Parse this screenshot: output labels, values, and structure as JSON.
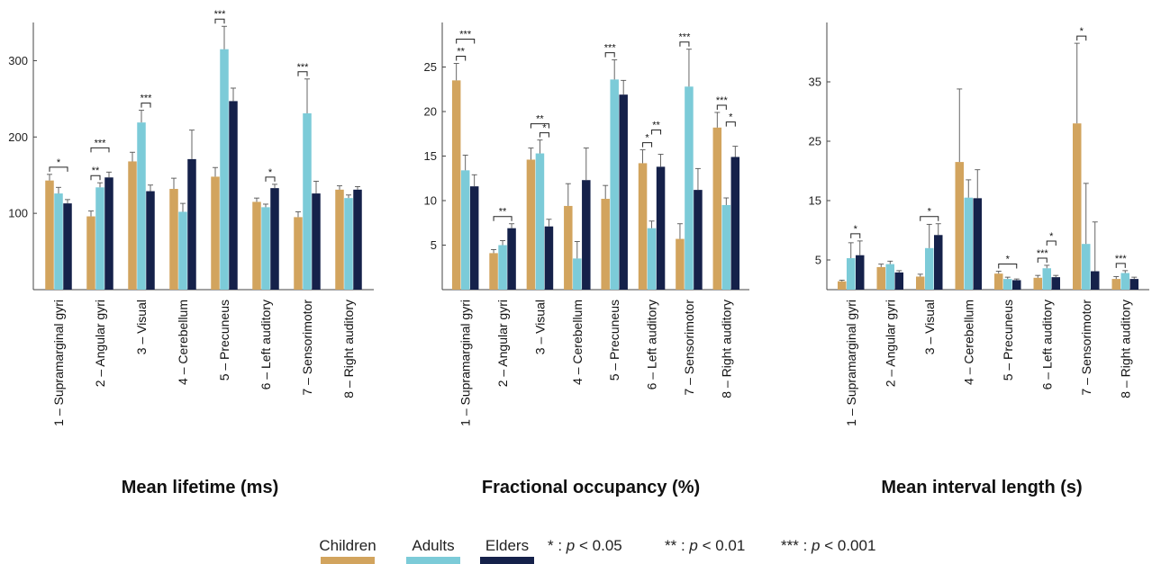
{
  "colors": {
    "Children": "#D2A45E",
    "Adults": "#7CCBD8",
    "Elders": "#15214A"
  },
  "legend": {
    "series": [
      "Children",
      "Adults",
      "Elders"
    ],
    "sig": [
      {
        "stars": "*",
        "sep": " : ",
        "p": "p",
        "rest": " < 0.05"
      },
      {
        "stars": "**",
        "sep": " : ",
        "p": "p",
        "rest": " < 0.01"
      },
      {
        "stars": "***",
        "sep": " : ",
        "p": "p",
        "rest": " < 0.001"
      }
    ]
  },
  "chart_data": [
    {
      "type": "bar",
      "title": "Mean lifetime (ms)",
      "categories": [
        "1 – Supramarginal gyri",
        "2 – Angular gyri",
        "3 – Visual",
        "4 – Cerebellum",
        "5 – Precuneus",
        "6 – Left auditory",
        "7 – Sensorimotor",
        "8 – Right auditory"
      ],
      "ylim": [
        0,
        350
      ],
      "yticks": [
        100,
        200,
        300
      ],
      "series": [
        {
          "name": "Children",
          "values": [
            143,
            96,
            168,
            132,
            148,
            115,
            95,
            131
          ],
          "err": [
            8,
            7,
            12,
            14,
            12,
            5,
            7,
            5
          ]
        },
        {
          "name": "Adults",
          "values": [
            126,
            134,
            219,
            102,
            315,
            108,
            231,
            120
          ],
          "err": [
            8,
            6,
            16,
            11,
            30,
            4,
            45,
            4
          ]
        },
        {
          "name": "Elders",
          "values": [
            113,
            147,
            129,
            171,
            247,
            133,
            126,
            131
          ],
          "err": [
            5,
            7,
            8,
            38,
            17,
            5,
            16,
            4
          ]
        }
      ],
      "significance": [
        {
          "cat": 0,
          "a": 0,
          "b": 2,
          "label": "*"
        },
        {
          "cat": 1,
          "a": 0,
          "b": 1,
          "label": "**"
        },
        {
          "cat": 1,
          "a": 0,
          "b": 2,
          "label": "***"
        },
        {
          "cat": 2,
          "a": 1,
          "b": 2,
          "label": "***"
        },
        {
          "cat": 4,
          "a": 0,
          "b": 1,
          "label": "***"
        },
        {
          "cat": 5,
          "a": 1,
          "b": 2,
          "label": "*"
        },
        {
          "cat": 6,
          "a": 0,
          "b": 1,
          "label": "***"
        }
      ]
    },
    {
      "type": "bar",
      "title": "Fractional occupancy (%)",
      "categories": [
        "1 – Supramarginal gyri",
        "2 – Angular gyri",
        "3 – Visual",
        "4 – Cerebellum",
        "5 – Precuneus",
        "6 – Left auditory",
        "7 – Sensorimotor",
        "8 – Right auditory"
      ],
      "ylim": [
        0,
        30
      ],
      "yticks": [
        5,
        10,
        15,
        20,
        25
      ],
      "series": [
        {
          "name": "Children",
          "values": [
            23.5,
            4.1,
            14.6,
            9.4,
            10.2,
            14.2,
            5.7,
            18.2
          ],
          "err": [
            1.9,
            0.4,
            1.3,
            2.5,
            1.5,
            1.5,
            1.7,
            1.7
          ]
        },
        {
          "name": "Adults",
          "values": [
            13.4,
            5.0,
            15.3,
            3.5,
            23.6,
            6.9,
            22.8,
            9.5
          ],
          "err": [
            1.7,
            0.5,
            1.5,
            1.9,
            2.2,
            0.8,
            4.2,
            0.8
          ]
        },
        {
          "name": "Elders",
          "values": [
            11.6,
            6.9,
            7.1,
            12.3,
            21.9,
            13.8,
            11.2,
            14.9
          ],
          "err": [
            1.3,
            0.5,
            0.8,
            3.6,
            1.6,
            1.4,
            2.4,
            1.2
          ]
        }
      ],
      "significance": [
        {
          "cat": 0,
          "a": 0,
          "b": 1,
          "label": "**"
        },
        {
          "cat": 0,
          "a": 0,
          "b": 2,
          "label": "***"
        },
        {
          "cat": 1,
          "a": 0,
          "b": 2,
          "label": "**"
        },
        {
          "cat": 2,
          "a": 1,
          "b": 2,
          "label": "*"
        },
        {
          "cat": 2,
          "a": 0,
          "b": 2,
          "label": "**"
        },
        {
          "cat": 4,
          "a": 0,
          "b": 1,
          "label": "***"
        },
        {
          "cat": 5,
          "a": 0,
          "b": 1,
          "label": "*"
        },
        {
          "cat": 5,
          "a": 1,
          "b": 2,
          "label": "**"
        },
        {
          "cat": 6,
          "a": 0,
          "b": 1,
          "label": "***"
        },
        {
          "cat": 7,
          "a": 0,
          "b": 1,
          "label": "***"
        },
        {
          "cat": 7,
          "a": 1,
          "b": 2,
          "label": "*"
        }
      ]
    },
    {
      "type": "bar",
      "title": "Mean interval length (s)",
      "categories": [
        "1 – Supramarginal gyri",
        "2 – Angular gyri",
        "3 – Visual",
        "4 – Cerebellum",
        "5 – Precuneus",
        "6 – Left auditory",
        "7 – Sensorimotor",
        "8 – Right auditory"
      ],
      "ylim": [
        0,
        45
      ],
      "yticks": [
        5,
        15,
        25,
        35
      ],
      "series": [
        {
          "name": "Children",
          "values": [
            1.4,
            3.8,
            2.2,
            21.5,
            2.7,
            2.0,
            28.0,
            1.8
          ],
          "err": [
            0.2,
            0.5,
            0.4,
            12.3,
            0.4,
            0.4,
            13.5,
            0.4
          ]
        },
        {
          "name": "Adults",
          "values": [
            5.3,
            4.3,
            7.0,
            15.5,
            1.8,
            3.6,
            7.7,
            2.8
          ],
          "err": [
            2.6,
            0.5,
            4.0,
            3.0,
            0.3,
            0.5,
            10.2,
            0.4
          ]
        },
        {
          "name": "Elders",
          "values": [
            5.8,
            2.9,
            9.2,
            15.4,
            1.6,
            2.1,
            3.1,
            1.8
          ],
          "err": [
            2.4,
            0.3,
            1.9,
            4.8,
            0.2,
            0.3,
            8.3,
            0.3
          ]
        }
      ],
      "significance": [
        {
          "cat": 0,
          "a": 1,
          "b": 2,
          "label": "*"
        },
        {
          "cat": 2,
          "a": 0,
          "b": 2,
          "label": "*"
        },
        {
          "cat": 4,
          "a": 0,
          "b": 2,
          "label": "*"
        },
        {
          "cat": 5,
          "a": 0,
          "b": 1,
          "label": "***"
        },
        {
          "cat": 5,
          "a": 1,
          "b": 2,
          "label": "*"
        },
        {
          "cat": 6,
          "a": 0,
          "b": 1,
          "label": "*"
        },
        {
          "cat": 7,
          "a": 0,
          "b": 1,
          "label": "***"
        }
      ]
    }
  ]
}
